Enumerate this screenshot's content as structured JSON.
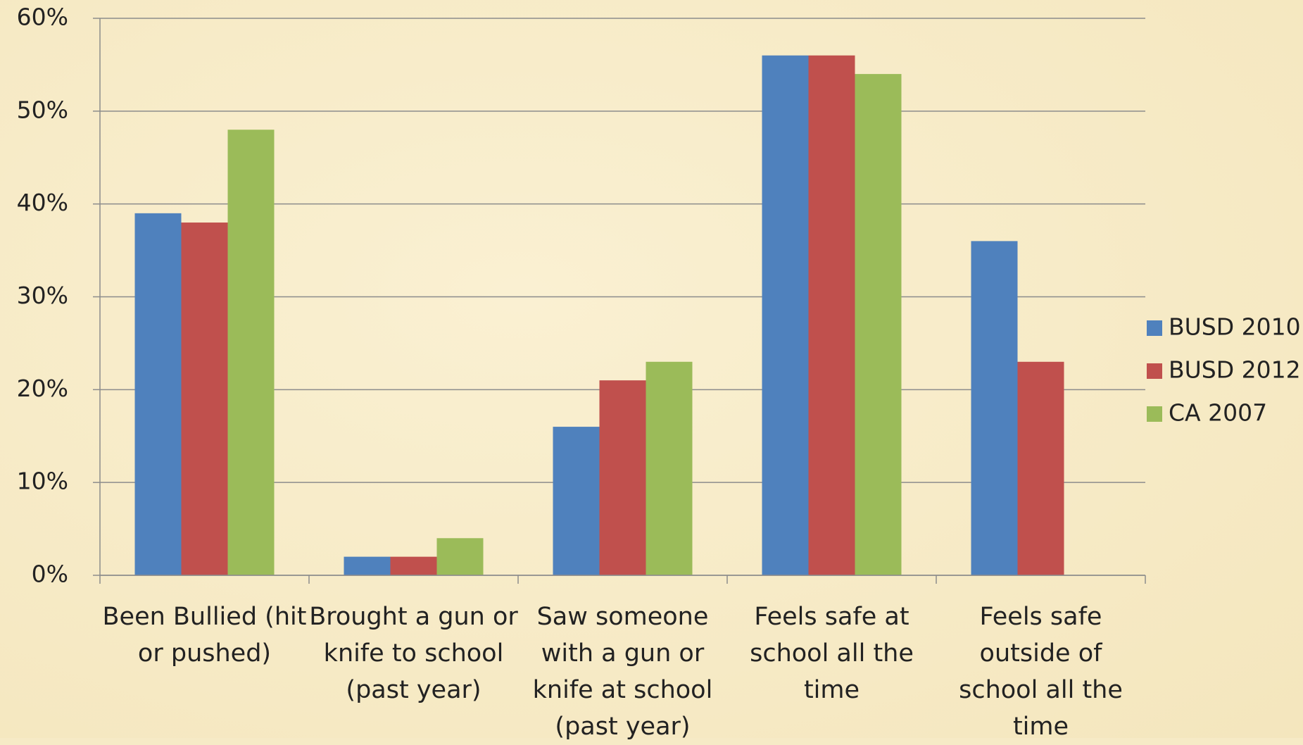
{
  "chart_data": {
    "type": "bar",
    "categories": [
      "Been Bullied (hit or pushed)",
      "Brought a gun or knife to school (past year)",
      "Saw someone with a gun or knife at school (past year)",
      "Feels safe at school all the time",
      "Feels safe outside of school all the time"
    ],
    "series": [
      {
        "name": "BUSD 2010",
        "color": "#4f81bd",
        "values": [
          39,
          2,
          16,
          56,
          36
        ]
      },
      {
        "name": "BUSD 2012",
        "color": "#c0504d",
        "values": [
          38,
          2,
          21,
          56,
          23
        ]
      },
      {
        "name": "CA 2007",
        "color": "#9bbb59",
        "values": [
          48,
          4,
          23,
          54,
          null
        ]
      }
    ],
    "ylim": [
      0,
      60
    ],
    "yticks": [
      {
        "value": 0,
        "label": "0%"
      },
      {
        "value": 10,
        "label": "10%"
      },
      {
        "value": 20,
        "label": "20%"
      },
      {
        "value": 30,
        "label": "30%"
      },
      {
        "value": 40,
        "label": "40%"
      },
      {
        "value": 50,
        "label": "50%"
      },
      {
        "value": 60,
        "label": "60%"
      }
    ],
    "grid": true,
    "legend": "right"
  }
}
